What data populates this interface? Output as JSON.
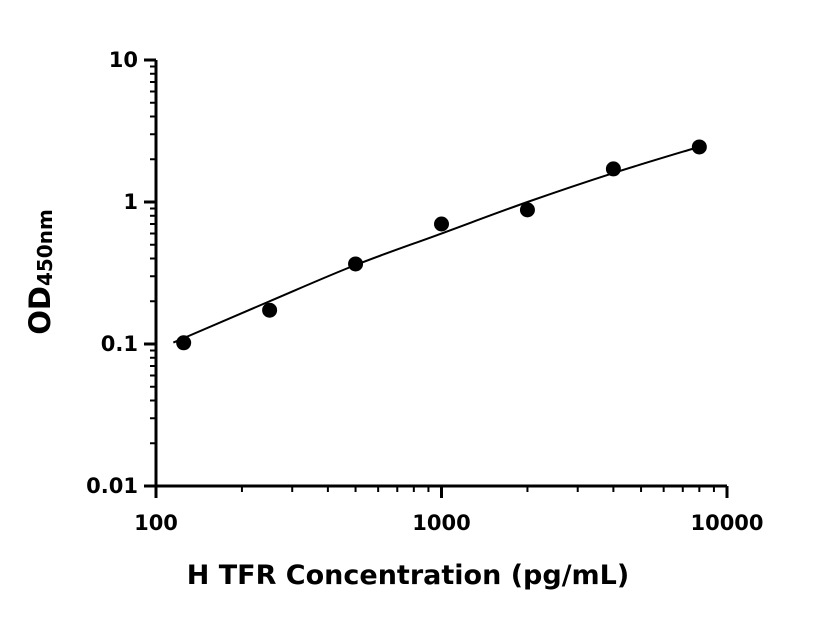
{
  "chart_data": {
    "type": "scatter",
    "title": "",
    "xlabel": "H TFR Concentration (pg/mL)",
    "ylabel_main": "OD",
    "ylabel_sub": "450nm",
    "x_scale": "log",
    "y_scale": "log",
    "xlim": [
      100,
      10000
    ],
    "ylim": [
      0.01,
      10
    ],
    "x_ticks": [
      "100",
      "1000",
      "10000"
    ],
    "y_ticks": [
      "0.01",
      "0.1",
      "1",
      "10"
    ],
    "grid": false,
    "series": [
      {
        "points": [
          {
            "x": 125,
            "y": 0.102
          },
          {
            "x": 250,
            "y": 0.173
          },
          {
            "x": 500,
            "y": 0.366
          },
          {
            "x": 1000,
            "y": 0.7
          },
          {
            "x": 2000,
            "y": 0.88
          },
          {
            "x": 4000,
            "y": 1.71
          },
          {
            "x": 8000,
            "y": 2.44
          }
        ]
      }
    ],
    "fit_curve": [
      {
        "x": 125,
        "y": 0.11
      },
      {
        "x": 250,
        "y": 0.2
      },
      {
        "x": 500,
        "y": 0.36
      },
      {
        "x": 1000,
        "y": 0.6
      },
      {
        "x": 2000,
        "y": 1.0
      },
      {
        "x": 4000,
        "y": 1.6
      },
      {
        "x": 8000,
        "y": 2.45
      }
    ],
    "colors": {
      "points": "#000000",
      "curve": "#000000"
    }
  }
}
